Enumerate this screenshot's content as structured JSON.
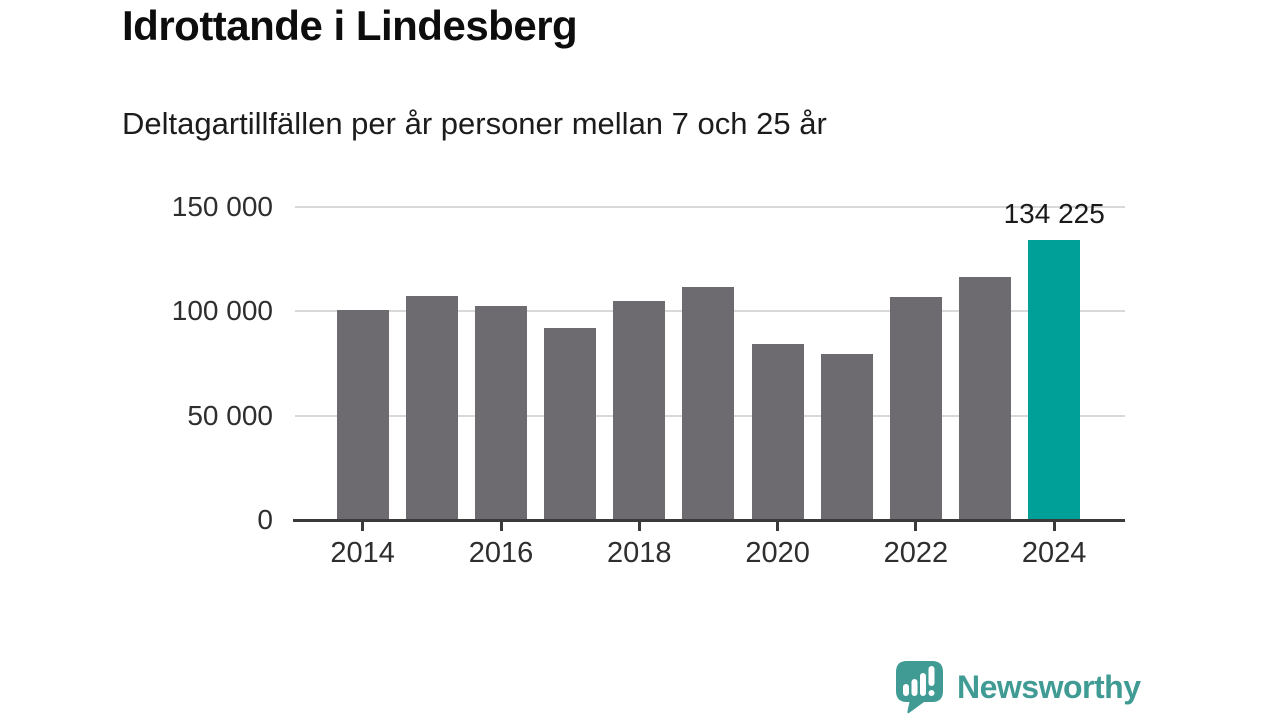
{
  "header": {
    "title": "Idrottande i Lindesberg",
    "subtitle": "Deltagartillfällen per år personer mellan 7 och 25 år"
  },
  "chart_data": {
    "type": "bar",
    "title": "Idrottande i Lindesberg",
    "subtitle": "Deltagartillfällen per år personer mellan 7 och 25 år",
    "categories": [
      "2014",
      "2015",
      "2016",
      "2017",
      "2018",
      "2019",
      "2020",
      "2021",
      "2022",
      "2023",
      "2024"
    ],
    "values": [
      100500,
      107500,
      102500,
      92000,
      105000,
      111500,
      84500,
      79500,
      107000,
      116500,
      134225
    ],
    "highlight_index": 10,
    "highlight_label": "134 225",
    "ylim": [
      0,
      150000
    ],
    "yticks": [
      {
        "value": 0,
        "label": "0"
      },
      {
        "value": 50000,
        "label": "50 000"
      },
      {
        "value": 100000,
        "label": "100 000"
      },
      {
        "value": 150000,
        "label": "150 000"
      }
    ],
    "xtick_labels": [
      "2014",
      "2016",
      "2018",
      "2020",
      "2022",
      "2024"
    ],
    "grid": true,
    "legend_position": "none",
    "bar_color": "#6d6a70",
    "highlight_color": "#00a099",
    "gridline_color": "#d9d9d9",
    "axis_color": "#3a3a3a",
    "label_color": "#2e2e2e"
  },
  "footer": {
    "brand": "Newsworthy",
    "brand_color": "#3f9b94",
    "logo_icon": "newsworthy-chart-bubble-icon"
  }
}
